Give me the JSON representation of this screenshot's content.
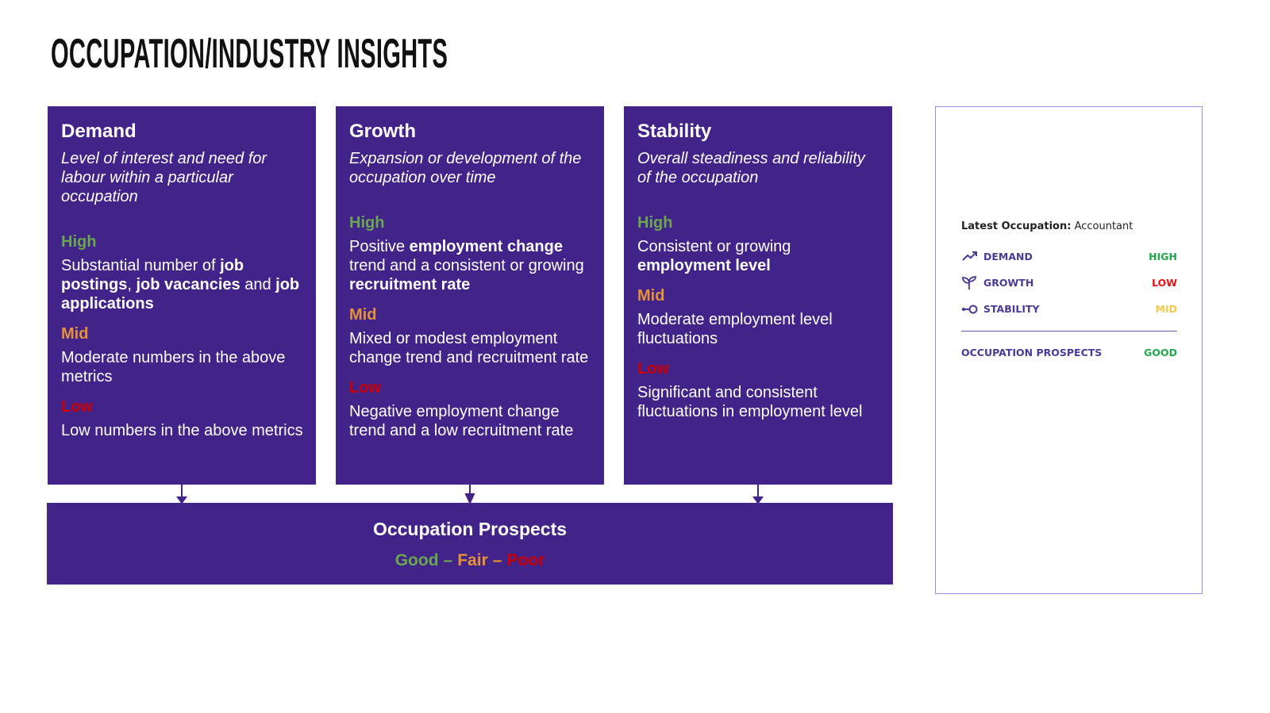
{
  "title": "OCCUPATION/INDUSTRY INSIGHTS",
  "columns": [
    {
      "heading": "Demand",
      "description": "Level of interest and need for labour within a particular occupation",
      "levels": [
        {
          "label": "High",
          "color": "#6aa84f",
          "text": [
            {
              "text": "Substantial number of ",
              "bold": false
            },
            {
              "text": "job postings",
              "bold": true
            },
            {
              "text": ", ",
              "bold": false
            },
            {
              "text": "job vacancies",
              "bold": true
            },
            {
              "text": " and ",
              "bold": false
            },
            {
              "text": "job applications",
              "bold": true
            }
          ]
        },
        {
          "label": "Mid",
          "color": "#e69138",
          "text": [
            {
              "text": "Moderate numbers in the above metrics",
              "bold": false
            }
          ]
        },
        {
          "label": "Low",
          "color": "#cc0000",
          "text": [
            {
              "text": "Low numbers in the above metrics",
              "bold": false
            }
          ]
        }
      ]
    },
    {
      "heading": "Growth",
      "description": "Expansion or development of the occupation over time",
      "levels": [
        {
          "label": "High",
          "color": "#6aa84f",
          "text": [
            {
              "text": "Positive ",
              "bold": false
            },
            {
              "text": "employment change",
              "bold": true
            },
            {
              "text": " trend and a consistent or growing ",
              "bold": false
            },
            {
              "text": "recruitment rate",
              "bold": true
            }
          ]
        },
        {
          "label": "Mid",
          "color": "#e69138",
          "text": [
            {
              "text": "Mixed or modest employment change trend and recruitment rate",
              "bold": false
            }
          ]
        },
        {
          "label": "Low",
          "color": "#cc0000",
          "text": [
            {
              "text": "Negative employment change trend and a low recruitment rate",
              "bold": false
            }
          ]
        }
      ]
    },
    {
      "heading": "Stability",
      "description": "Overall steadiness and reliability of the occupation",
      "levels": [
        {
          "label": "High",
          "color": "#6aa84f",
          "text": [
            {
              "text": "Consistent or growing ",
              "bold": false
            },
            {
              "text": "employment level",
              "bold": true
            }
          ]
        },
        {
          "label": "Mid",
          "color": "#e69138",
          "text": [
            {
              "text": "Moderate employment level fluctuations",
              "bold": false
            }
          ]
        },
        {
          "label": "Low",
          "color": "#cc0000",
          "text": [
            {
              "text": "Significant and consistent fluctuations in employment level",
              "bold": false
            }
          ]
        }
      ]
    }
  ],
  "prospects": {
    "heading": "Occupation Prospects",
    "separator": "–",
    "scale": [
      {
        "label": "Good",
        "color": "#6aa84f"
      },
      {
        "label": "Fair",
        "color": "#e69138"
      },
      {
        "label": "Poor",
        "color": "#cc0000"
      }
    ]
  },
  "panel": {
    "occupation_label": "Latest Occupation:",
    "occupation": "Accountant",
    "rows": [
      {
        "label": "DEMAND",
        "rating": "HIGH",
        "color": "#1fa84a"
      },
      {
        "label": "GROWTH",
        "rating": "LOW",
        "color": "#e01414"
      },
      {
        "label": "STABILITY",
        "rating": "MID",
        "color": "#f2c94c"
      }
    ],
    "summary": {
      "label": "OCCUPATION PROSPECTS",
      "rating": "GOOD",
      "color": "#1fa84a"
    }
  }
}
